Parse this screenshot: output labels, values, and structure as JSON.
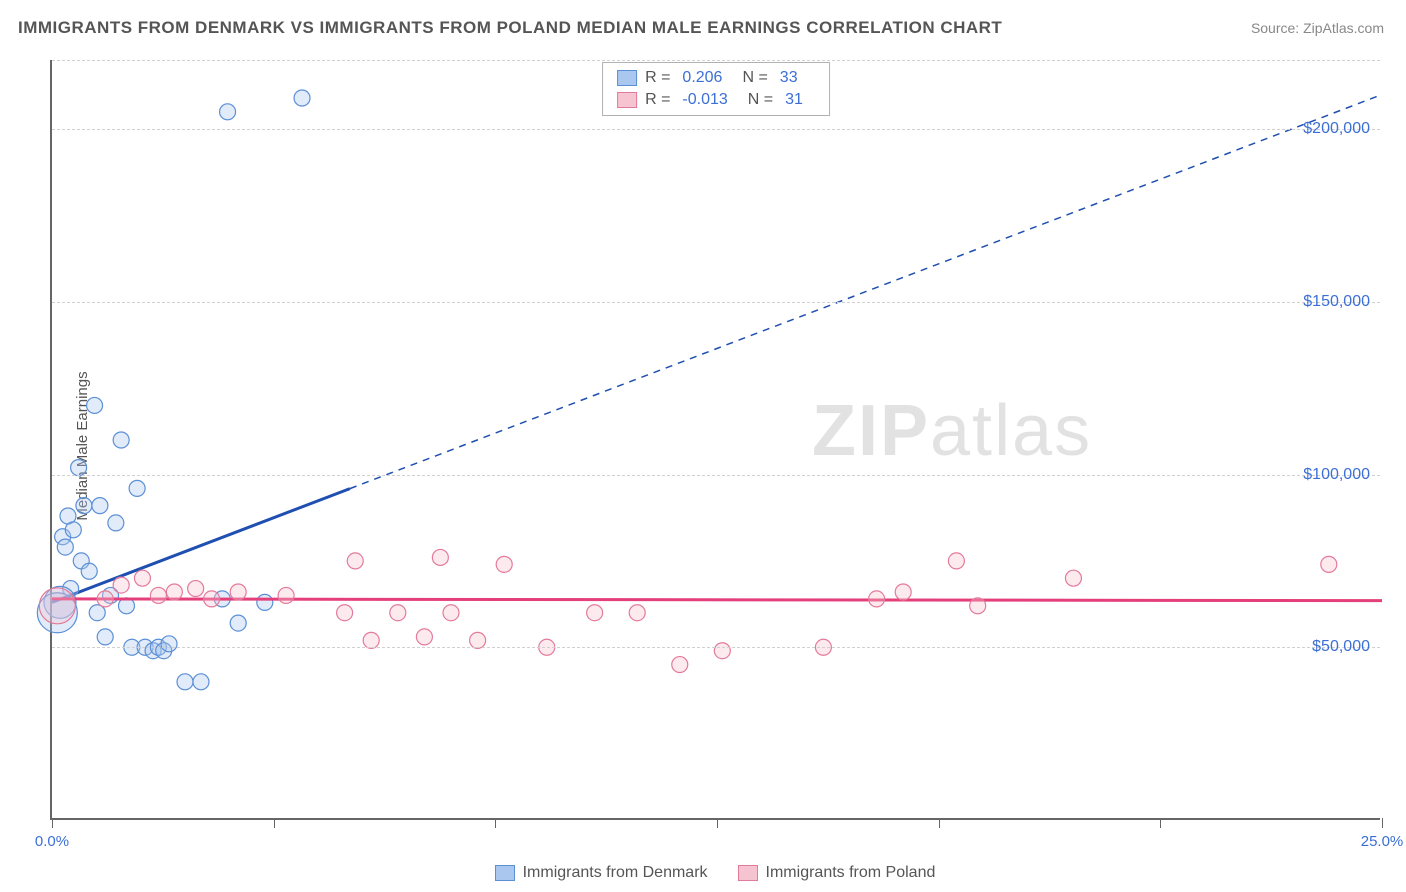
{
  "title": "IMMIGRANTS FROM DENMARK VS IMMIGRANTS FROM POLAND MEDIAN MALE EARNINGS CORRELATION CHART",
  "source_label": "Source: ZipAtlas.com",
  "y_axis_label": "Median Male Earnings",
  "watermark": {
    "bold": "ZIP",
    "light": "atlas"
  },
  "chart": {
    "type": "scatter",
    "background_color": "#ffffff",
    "grid_color": "#d0d0d0",
    "axis_color": "#666666",
    "xlim": [
      0,
      25
    ],
    "ylim": [
      0,
      220000
    ],
    "x_ticks": [
      0,
      4.17,
      8.33,
      12.5,
      16.67,
      20.83,
      25
    ],
    "x_tick_labels_shown": {
      "0": "0.0%",
      "25": "25.0%"
    },
    "y_ticks": [
      50000,
      100000,
      150000,
      200000
    ],
    "y_tick_labels": [
      "$50,000",
      "$100,000",
      "$150,000",
      "$200,000"
    ],
    "marker_radius": 8,
    "marker_stroke_width": 1.2,
    "marker_fill_opacity": 0.35,
    "trend_solid_width": 3,
    "trend_dash_width": 1.5,
    "trend_dash_pattern": "7,6",
    "series": [
      {
        "name": "Immigrants from Denmark",
        "color_fill": "#a9c7ef",
        "color_stroke": "#5b8fd6",
        "trend_color": "#1f4fb0",
        "R": "0.206",
        "N": "33",
        "trend": {
          "x1": 0,
          "y1": 63000,
          "x2": 25,
          "y2": 210000,
          "solid_until_x": 5.6
        },
        "points": [
          {
            "x": 0.2,
            "y": 82000
          },
          {
            "x": 0.25,
            "y": 79000
          },
          {
            "x": 0.3,
            "y": 88000
          },
          {
            "x": 0.35,
            "y": 67000
          },
          {
            "x": 0.4,
            "y": 84000
          },
          {
            "x": 0.5,
            "y": 102000
          },
          {
            "x": 0.55,
            "y": 75000
          },
          {
            "x": 0.6,
            "y": 91000
          },
          {
            "x": 0.7,
            "y": 72000
          },
          {
            "x": 0.8,
            "y": 120000
          },
          {
            "x": 0.85,
            "y": 60000
          },
          {
            "x": 0.9,
            "y": 91000
          },
          {
            "x": 1.0,
            "y": 53000
          },
          {
            "x": 1.1,
            "y": 65000
          },
          {
            "x": 1.2,
            "y": 86000
          },
          {
            "x": 1.3,
            "y": 110000
          },
          {
            "x": 1.4,
            "y": 62000
          },
          {
            "x": 1.5,
            "y": 50000
          },
          {
            "x": 1.6,
            "y": 96000
          },
          {
            "x": 1.75,
            "y": 50000
          },
          {
            "x": 1.9,
            "y": 49000
          },
          {
            "x": 2.0,
            "y": 50000
          },
          {
            "x": 2.1,
            "y": 49000
          },
          {
            "x": 2.2,
            "y": 51000
          },
          {
            "x": 2.5,
            "y": 40000
          },
          {
            "x": 2.8,
            "y": 40000
          },
          {
            "x": 3.2,
            "y": 64000
          },
          {
            "x": 3.3,
            "y": 205000
          },
          {
            "x": 3.5,
            "y": 57000
          },
          {
            "x": 4.0,
            "y": 63000
          },
          {
            "x": 4.7,
            "y": 209000
          },
          {
            "x": 0.15,
            "y": 63000,
            "r": 16
          },
          {
            "x": 0.1,
            "y": 60000,
            "r": 20
          }
        ]
      },
      {
        "name": "Immigrants from Poland",
        "color_fill": "#f6c3d1",
        "color_stroke": "#e47a9a",
        "trend_color": "#e43f7a",
        "R": "-0.013",
        "N": "31",
        "trend": {
          "x1": 0,
          "y1": 64000,
          "x2": 25,
          "y2": 63500,
          "solid_until_x": 25
        },
        "points": [
          {
            "x": 0.1,
            "y": 62000,
            "r": 18
          },
          {
            "x": 1.0,
            "y": 64000
          },
          {
            "x": 1.3,
            "y": 68000
          },
          {
            "x": 1.7,
            "y": 70000
          },
          {
            "x": 2.0,
            "y": 65000
          },
          {
            "x": 2.3,
            "y": 66000
          },
          {
            "x": 2.7,
            "y": 67000
          },
          {
            "x": 3.0,
            "y": 64000
          },
          {
            "x": 3.5,
            "y": 66000
          },
          {
            "x": 4.4,
            "y": 65000
          },
          {
            "x": 5.5,
            "y": 60000
          },
          {
            "x": 5.7,
            "y": 75000
          },
          {
            "x": 6.0,
            "y": 52000
          },
          {
            "x": 6.5,
            "y": 60000
          },
          {
            "x": 7.0,
            "y": 53000
          },
          {
            "x": 7.3,
            "y": 76000
          },
          {
            "x": 7.5,
            "y": 60000
          },
          {
            "x": 8.0,
            "y": 52000
          },
          {
            "x": 8.5,
            "y": 74000
          },
          {
            "x": 9.3,
            "y": 50000
          },
          {
            "x": 10.2,
            "y": 60000
          },
          {
            "x": 11.0,
            "y": 60000
          },
          {
            "x": 11.8,
            "y": 45000
          },
          {
            "x": 12.6,
            "y": 49000
          },
          {
            "x": 14.5,
            "y": 50000
          },
          {
            "x": 15.5,
            "y": 64000
          },
          {
            "x": 16.0,
            "y": 66000
          },
          {
            "x": 17.0,
            "y": 75000
          },
          {
            "x": 17.4,
            "y": 62000
          },
          {
            "x": 19.2,
            "y": 70000
          },
          {
            "x": 24.0,
            "y": 74000
          }
        ]
      }
    ]
  },
  "legend_top_labels": {
    "R": "R  =",
    "N": "N  ="
  },
  "colors": {
    "text_primary": "#555555",
    "text_secondary": "#888888",
    "value_color": "#3b6fd6"
  }
}
